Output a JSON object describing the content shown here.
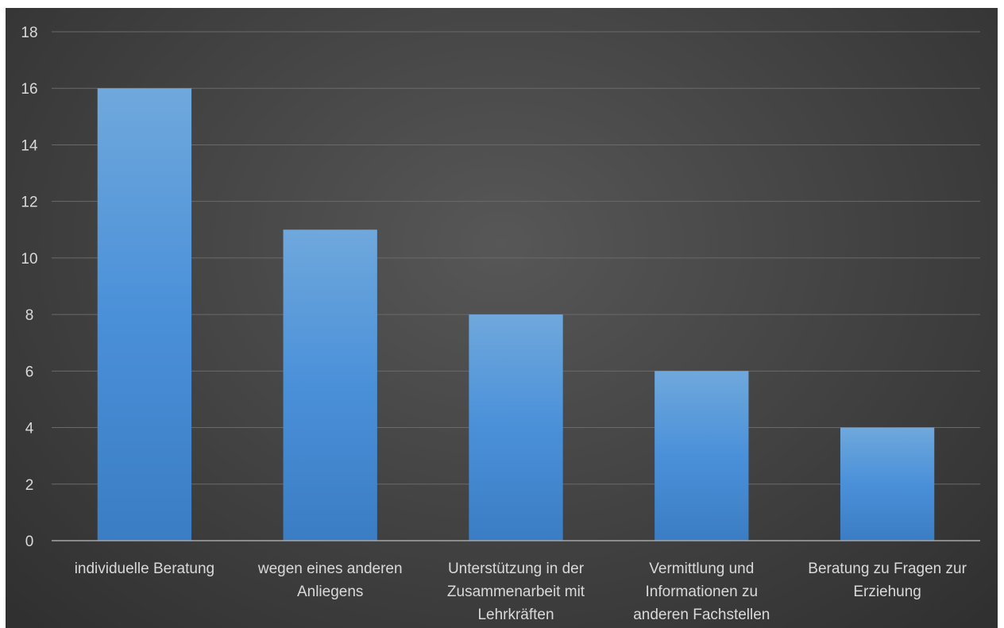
{
  "chart_data": {
    "type": "bar",
    "categories": [
      [
        "individuelle Beratung"
      ],
      [
        "wegen eines anderen",
        "Anliegens"
      ],
      [
        "Unterstützung in der",
        "Zusammenarbeit mit",
        "Lehrkräften"
      ],
      [
        "Vermittlung und",
        "Informationen zu",
        "anderen Fachstellen"
      ],
      [
        "Beratung zu Fragen zur",
        "Erziehung"
      ]
    ],
    "values": [
      16,
      11,
      8,
      6,
      4
    ],
    "ylim": [
      0,
      18
    ],
    "yticks": [
      0,
      2,
      4,
      6,
      8,
      10,
      12,
      14,
      16,
      18
    ],
    "grid": true,
    "legend": "none",
    "colors": {
      "bar_top": "#6fa8dc",
      "bar_mid": "#4a90d9",
      "bar_bottom": "#3b7dc4",
      "grid": "#6a6a6a",
      "axis": "#a6a6a6",
      "text": "#d9d9d9"
    }
  }
}
